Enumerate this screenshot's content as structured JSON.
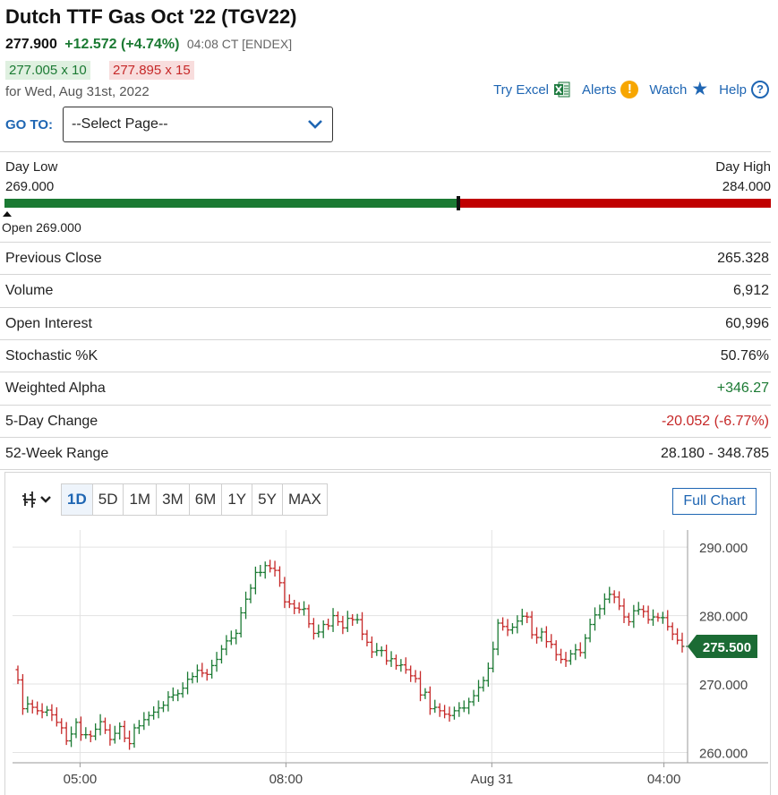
{
  "header": {
    "title": "Dutch TTF Gas Oct '22 (TGV22)",
    "last": "277.900",
    "change": "+12.572 (+4.74%)",
    "time": "04:08 CT [ENDEX]",
    "bid": "277.005 x 10",
    "ask": "277.895 x 15",
    "for_date": "for Wed, Aug 31st, 2022"
  },
  "links": {
    "excel": "Try Excel",
    "alerts": "Alerts",
    "watch": "Watch",
    "help": "Help"
  },
  "goto": {
    "label": "GO TO:",
    "select_value": "--Select Page--"
  },
  "day_range": {
    "low_label": "Day Low",
    "low_value": "269.000",
    "high_label": "Day High",
    "high_value": "284.000",
    "open_label": "Open 269.000",
    "current_fraction": 0.593
  },
  "stats": [
    {
      "label": "Previous Close",
      "value": "265.328",
      "tone": ""
    },
    {
      "label": "Volume",
      "value": "6,912",
      "tone": ""
    },
    {
      "label": "Open Interest",
      "value": "60,996",
      "tone": ""
    },
    {
      "label": "Stochastic %K",
      "value": "50.76%",
      "tone": ""
    },
    {
      "label": "Weighted Alpha",
      "value": "+346.27",
      "tone": "pos"
    },
    {
      "label": "5-Day Change",
      "value": "-20.052 (-6.77%)",
      "tone": "neg"
    },
    {
      "label": "52-Week Range",
      "value": "28.180 - 348.785",
      "tone": ""
    }
  ],
  "chart_toolbar": {
    "timeframes": [
      "1D",
      "5D",
      "1M",
      "3M",
      "6M",
      "1Y",
      "5Y",
      "MAX"
    ],
    "active": "1D",
    "full_chart": "Full Chart"
  },
  "colors": {
    "up": "#1b7a33",
    "down": "#c62828",
    "link": "#1f66b3",
    "price_tag": "#1b6b34"
  },
  "chart_data": {
    "type": "ohlc",
    "y_ticks": [
      "290.000",
      "280.000",
      "270.000",
      "260.000"
    ],
    "x_ticks": [
      "05:00",
      "08:00",
      "Aug 31",
      "04:00"
    ],
    "ylim": [
      258.5,
      292.5
    ],
    "last_price_label": "275.500",
    "last_price": 275.5,
    "close": [
      270.6,
      266.4,
      267.1,
      266.6,
      266.1,
      265.9,
      266.2,
      265.5,
      264.4,
      263.6,
      261.7,
      262.7,
      264.4,
      262.6,
      262.6,
      262.4,
      263.4,
      264.5,
      263.3,
      261.9,
      262.8,
      263.8,
      262.1,
      261.3,
      263.6,
      263.9,
      264.8,
      265.4,
      265.9,
      266.5,
      266.9,
      268.1,
      268.4,
      268.6,
      269.4,
      270.7,
      271.1,
      272.0,
      271.6,
      271.4,
      272.7,
      273.6,
      275.1,
      276.3,
      276.7,
      277.4,
      280.4,
      282.4,
      284.0,
      286.3,
      286.3,
      287.3,
      286.9,
      286.6,
      284.8,
      282.0,
      281.7,
      281.1,
      280.9,
      281.0,
      278.8,
      277.4,
      277.6,
      278.7,
      278.5,
      280.0,
      279.1,
      278.2,
      279.6,
      279.4,
      279.4,
      277.3,
      276.1,
      274.7,
      274.9,
      274.9,
      273.4,
      273.7,
      272.7,
      272.8,
      272.1,
      271.2,
      270.8,
      268.4,
      268.8,
      266.4,
      266.6,
      266.1,
      265.6,
      265.4,
      266.1,
      266.5,
      266.5,
      267.4,
      268.3,
      269.5,
      270.5,
      272.3,
      275.1,
      278.9,
      278.4,
      277.9,
      278.3,
      279.2,
      279.9,
      279.8,
      277.2,
      276.8,
      277.6,
      276.2,
      275.8,
      274.3,
      273.6,
      273.4,
      274.4,
      275.0,
      274.6,
      276.7,
      278.7,
      280.1,
      281.0,
      282.4,
      283.1,
      282.7,
      281.4,
      279.8,
      279.1,
      280.7,
      280.9,
      280.6,
      279.4,
      279.8,
      279.7,
      279.7,
      278.4,
      277.3,
      276.4,
      275.5
    ]
  }
}
